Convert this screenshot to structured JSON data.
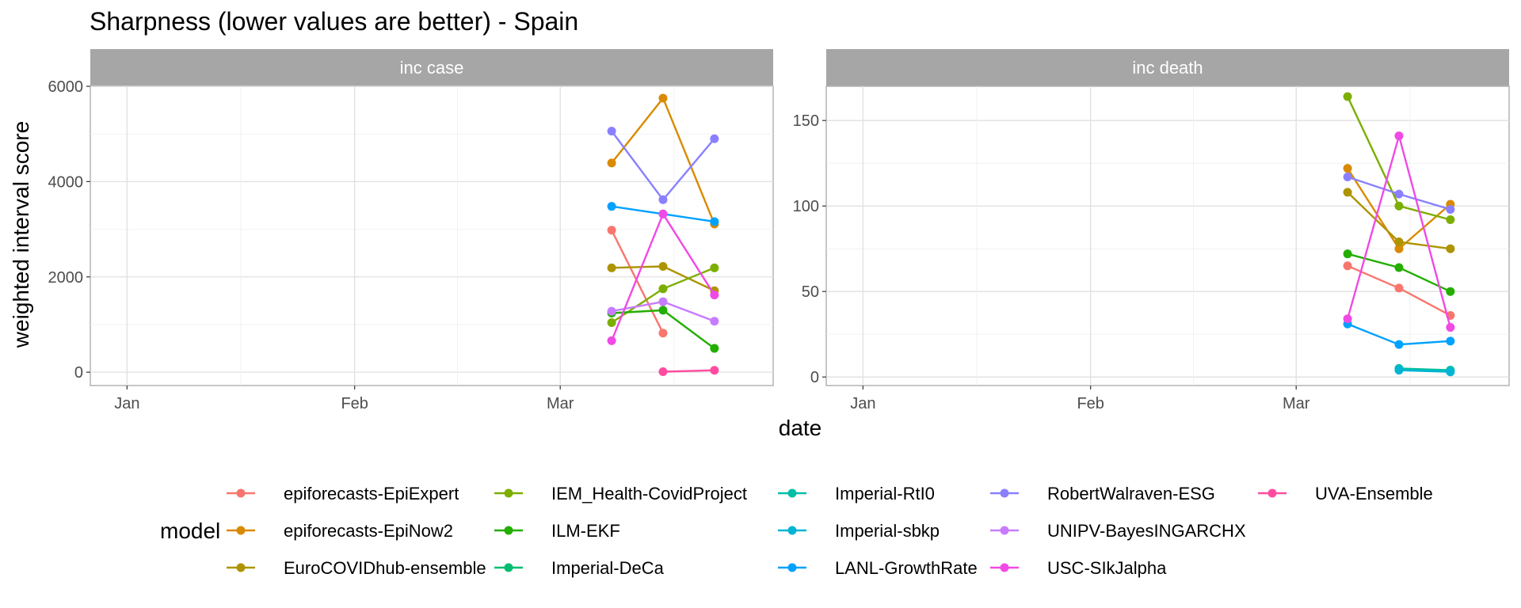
{
  "chart_data": {
    "type": "line",
    "title": "Sharpness (lower values are better) - Spain",
    "xlabel": "date",
    "ylabel": "weighted interval score",
    "x_ticks": [
      "Jan",
      "Feb",
      "Mar"
    ],
    "x_tick_dates": [
      "2021-01-01",
      "2021-02-01",
      "2021-03-01"
    ],
    "x_range": [
      "2020-12-27",
      "2021-03-30"
    ],
    "x": [
      "2021-03-08",
      "2021-03-15",
      "2021-03-22"
    ],
    "legend_title": "model",
    "legend_position": "bottom",
    "grid": true,
    "colors": {
      "epiforecasts-EpiExpert": "#F8766D",
      "epiforecasts-EpiNow2": "#D98A00",
      "EuroCOVIDhub-ensemble": "#AD9400",
      "IEM_Health-CovidProject": "#7CAE00",
      "ILM-EKF": "#23AE00",
      "Imperial-DeCa": "#00BD70",
      "Imperial-RtI0": "#00BFA5",
      "Imperial-sbkp": "#00B4D4",
      "LANL-GrowthRate": "#00A1FF",
      "RobertWalraven-ESG": "#8A80FF",
      "UNIPV-BayesINGARCHX": "#C77CFF",
      "USC-SIkJalpha": "#F149E6",
      "UVA-Ensemble": "#FF4CA0"
    },
    "legend_order": [
      "epiforecasts-EpiExpert",
      "epiforecasts-EpiNow2",
      "EuroCOVIDhub-ensemble",
      "IEM_Health-CovidProject",
      "ILM-EKF",
      "Imperial-DeCa",
      "Imperial-RtI0",
      "Imperial-sbkp",
      "LANL-GrowthRate",
      "RobertWalraven-ESG",
      "UNIPV-BayesINGARCHX",
      "USC-SIkJalpha",
      "UVA-Ensemble"
    ],
    "panels": [
      {
        "strip": "inc case",
        "ylim": [
          -280,
          6000
        ],
        "y_ticks": [
          0,
          2000,
          4000,
          6000
        ],
        "series": [
          {
            "name": "epiforecasts-EpiExpert",
            "values": [
              2980,
              820,
              null
            ]
          },
          {
            "name": "epiforecasts-EpiNow2",
            "values": [
              4390,
              5750,
              3110
            ]
          },
          {
            "name": "EuroCOVIDhub-ensemble",
            "values": [
              2190,
              2220,
              1710
            ]
          },
          {
            "name": "IEM_Health-CovidProject",
            "values": [
              1040,
              1750,
              2190
            ]
          },
          {
            "name": "ILM-EKF",
            "values": [
              1240,
              1300,
              500
            ]
          },
          {
            "name": "LANL-GrowthRate",
            "values": [
              3480,
              3320,
              3160
            ]
          },
          {
            "name": "RobertWalraven-ESG",
            "values": [
              5060,
              3620,
              4900
            ]
          },
          {
            "name": "UNIPV-BayesINGARCHX",
            "values": [
              1280,
              1480,
              1070
            ]
          },
          {
            "name": "USC-SIkJalpha",
            "values": [
              660,
              3320,
              1620
            ]
          },
          {
            "name": "UVA-Ensemble",
            "values": [
              null,
              10,
              40
            ]
          }
        ]
      },
      {
        "strip": "inc death",
        "ylim": [
          -5,
          170
        ],
        "y_ticks": [
          0,
          50,
          100,
          150
        ],
        "series": [
          {
            "name": "epiforecasts-EpiExpert",
            "values": [
              65,
              52,
              36
            ]
          },
          {
            "name": "epiforecasts-EpiNow2",
            "values": [
              122,
              75,
              101
            ]
          },
          {
            "name": "EuroCOVIDhub-ensemble",
            "values": [
              108,
              79,
              75
            ]
          },
          {
            "name": "IEM_Health-CovidProject",
            "values": [
              164,
              100,
              92
            ]
          },
          {
            "name": "ILM-EKF",
            "values": [
              72,
              64,
              50
            ]
          },
          {
            "name": "Imperial-RtI0",
            "values": [
              null,
              5,
              4
            ]
          },
          {
            "name": "Imperial-sbkp",
            "values": [
              null,
              4,
              3
            ]
          },
          {
            "name": "LANL-GrowthRate",
            "values": [
              31,
              19,
              21
            ]
          },
          {
            "name": "RobertWalraven-ESG",
            "values": [
              117,
              107,
              98
            ]
          },
          {
            "name": "USC-SIkJalpha",
            "values": [
              34,
              141,
              29
            ]
          }
        ]
      }
    ]
  }
}
